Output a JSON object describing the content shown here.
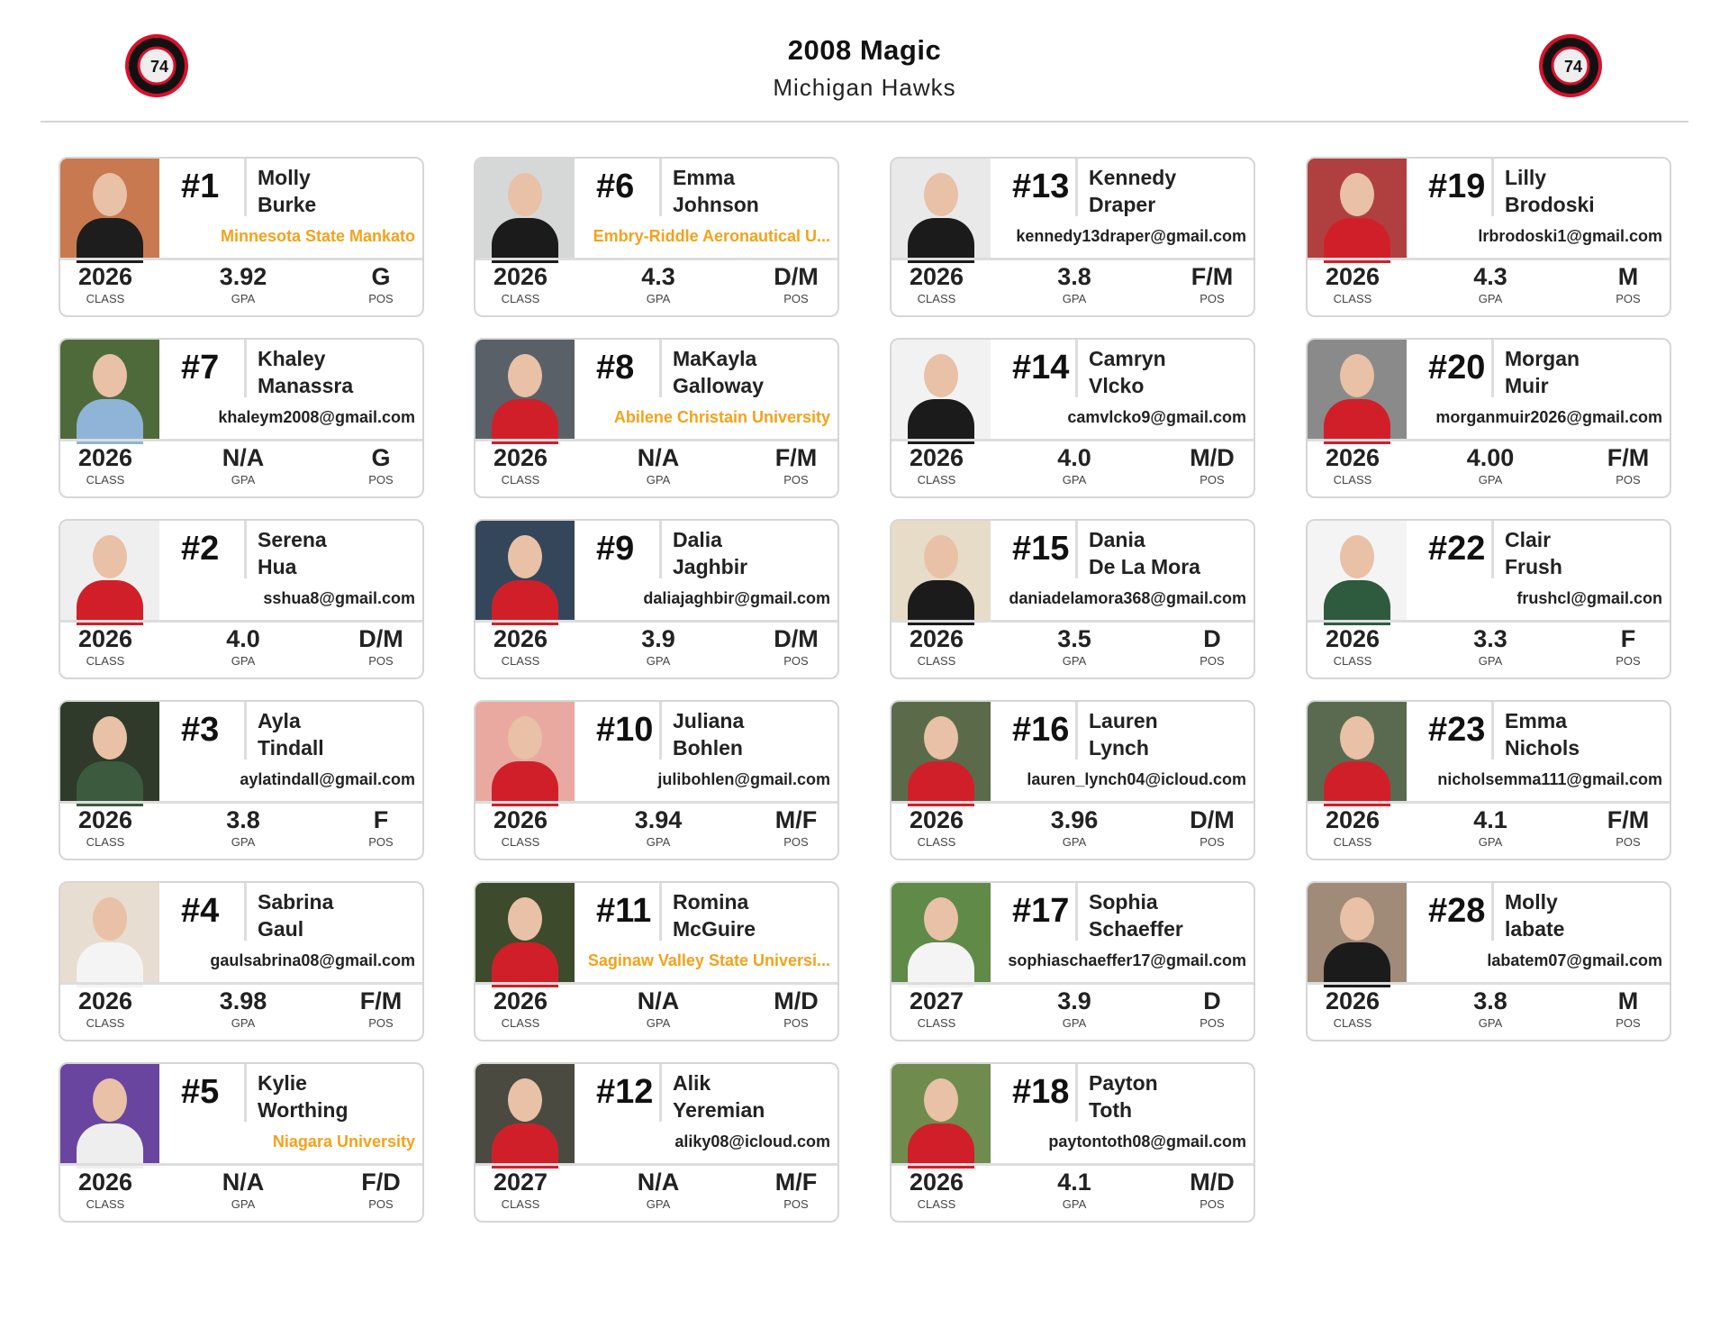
{
  "header": {
    "title": "2008 Magic",
    "subtitle": "Michigan Hawks",
    "logo_text": "MICHIGAN 74 HAWKS"
  },
  "colors": {
    "accent": "#f3a21b",
    "logo_red": "#d8102c"
  },
  "labels": {
    "class": "CLASS",
    "gpa": "GPA",
    "pos": "POS"
  },
  "columns": [
    [
      {
        "number": "#1",
        "first": "Molly",
        "last": "Burke",
        "sub": "Minnesota State Mankato",
        "sub_type": "school",
        "class": "2026",
        "gpa": "3.92",
        "pos": "G",
        "bg": "#c8794f",
        "shirt": "#1d1d1d"
      },
      {
        "number": "#7",
        "first": "Khaley",
        "last": "Manassra",
        "sub": "khaleym2008@gmail.com",
        "sub_type": "email",
        "class": "2026",
        "gpa": "N/A",
        "pos": "G",
        "bg": "#4f6a3a",
        "shirt": "#8fb4d8"
      },
      {
        "number": "#2",
        "first": "Serena",
        "last": "Hua",
        "sub": "sshua8@gmail.com",
        "sub_type": "email",
        "class": "2026",
        "gpa": "4.0",
        "pos": "D/M",
        "bg": "#efefef",
        "shirt": "#d11f2a"
      },
      {
        "number": "#3",
        "first": "Ayla",
        "last": "Tindall",
        "sub": "aylatindall@gmail.com",
        "sub_type": "email",
        "class": "2026",
        "gpa": "3.8",
        "pos": "F",
        "bg": "#2f3a2b",
        "shirt": "#3c5a3d"
      },
      {
        "number": "#4",
        "first": "Sabrina",
        "last": "Gaul",
        "sub": "gaulsabrina08@gmail.com",
        "sub_type": "email",
        "class": "2026",
        "gpa": "3.98",
        "pos": "F/M",
        "bg": "#e7ddd0",
        "shirt": "#f4f4f4"
      },
      {
        "number": "#5",
        "first": "Kylie",
        "last": "Worthing",
        "sub": "Niagara University",
        "sub_type": "school",
        "class": "2026",
        "gpa": "N/A",
        "pos": "F/D",
        "bg": "#6a45a0",
        "shirt": "#eee"
      }
    ],
    [
      {
        "number": "#6",
        "first": "Emma",
        "last": "Johnson",
        "sub": "Embry-Riddle Aeronautical U...",
        "sub_type": "school",
        "class": "2026",
        "gpa": "4.3",
        "pos": "D/M",
        "bg": "#d6d8d8",
        "shirt": "#1b1b1b"
      },
      {
        "number": "#8",
        "first": "MaKayla",
        "last": "Galloway",
        "sub": "Abilene Christain University",
        "sub_type": "school",
        "class": "2026",
        "gpa": "N/A",
        "pos": "F/M",
        "bg": "#5a6068",
        "shirt": "#d11f2a"
      },
      {
        "number": "#9",
        "first": "Dalia",
        "last": "Jaghbir",
        "sub": "daliajaghbir@gmail.com",
        "sub_type": "email",
        "class": "2026",
        "gpa": "3.9",
        "pos": "D/M",
        "bg": "#34465a",
        "shirt": "#d11f2a"
      },
      {
        "number": "#10",
        "first": "Juliana",
        "last": "Bohlen",
        "sub": "julibohlen@gmail.com",
        "sub_type": "email",
        "class": "2026",
        "gpa": "3.94",
        "pos": "M/F",
        "bg": "#e9a9a0",
        "shirt": "#d11f2a"
      },
      {
        "number": "#11",
        "first": "Romina",
        "last": "McGuire",
        "sub": "Saginaw Valley State Universi...",
        "sub_type": "school",
        "class": "2026",
        "gpa": "N/A",
        "pos": "M/D",
        "bg": "#3d4a2c",
        "shirt": "#d11f2a"
      },
      {
        "number": "#12",
        "first": "Alik",
        "last": "Yeremian",
        "sub": "aliky08@icloud.com",
        "sub_type": "email",
        "class": "2027",
        "gpa": "N/A",
        "pos": "M/F",
        "bg": "#4a4a40",
        "shirt": "#d11f2a"
      }
    ],
    [
      {
        "number": "#13",
        "first": "Kennedy",
        "last": "Draper",
        "sub": "kennedy13draper@gmail.com",
        "sub_type": "email",
        "class": "2026",
        "gpa": "3.8",
        "pos": "F/M",
        "bg": "#e9e9e9",
        "shirt": "#1b1b1b"
      },
      {
        "number": "#14",
        "first": "Camryn",
        "last": "Vlcko",
        "sub": "camvlcko9@gmail.com",
        "sub_type": "email",
        "class": "2026",
        "gpa": "4.0",
        "pos": "M/D",
        "bg": "#f2f2f2",
        "shirt": "#1b1b1b"
      },
      {
        "number": "#15",
        "first": "Dania",
        "last": "De La Mora",
        "sub": "daniadelamora368@gmail.com",
        "sub_type": "email",
        "class": "2026",
        "gpa": "3.5",
        "pos": "D",
        "bg": "#e6dcc8",
        "shirt": "#1b1b1b"
      },
      {
        "number": "#16",
        "first": "Lauren",
        "last": "Lynch",
        "sub": "lauren_lynch04@icloud.com",
        "sub_type": "email",
        "class": "2026",
        "gpa": "3.96",
        "pos": "D/M",
        "bg": "#5b6b4a",
        "shirt": "#d11f2a"
      },
      {
        "number": "#17",
        "first": "Sophia",
        "last": "Schaeffer",
        "sub": "sophiaschaeffer17@gmail.com",
        "sub_type": "email",
        "class": "2027",
        "gpa": "3.9",
        "pos": "D",
        "bg": "#5f8a48",
        "shirt": "#f4f4f4"
      },
      {
        "number": "#18",
        "first": "Payton",
        "last": "Toth",
        "sub": "paytontoth08@gmail.com",
        "sub_type": "email",
        "class": "2026",
        "gpa": "4.1",
        "pos": "M/D",
        "bg": "#6f8c4e",
        "shirt": "#d11f2a"
      }
    ],
    [
      {
        "number": "#19",
        "first": "Lilly",
        "last": "Brodoski",
        "sub": "lrbrodoski1@gmail.com",
        "sub_type": "email",
        "class": "2026",
        "gpa": "4.3",
        "pos": "M",
        "bg": "#b04040",
        "shirt": "#d11f2a"
      },
      {
        "number": "#20",
        "first": "Morgan",
        "last": "Muir",
        "sub": "morganmuir2026@gmail.com",
        "sub_type": "email",
        "class": "2026",
        "gpa": "4.00",
        "pos": "F/M",
        "bg": "#8a8a8a",
        "shirt": "#d11f2a"
      },
      {
        "number": "#22",
        "first": "Clair",
        "last": "Frush",
        "sub": "frushcl@gmail.con",
        "sub_type": "email",
        "class": "2026",
        "gpa": "3.3",
        "pos": "F",
        "bg": "#f4f4f4",
        "shirt": "#2e5a3e"
      },
      {
        "number": "#23",
        "first": "Emma",
        "last": "Nichols",
        "sub": "nicholsemma111@gmail.com",
        "sub_type": "email",
        "class": "2026",
        "gpa": "4.1",
        "pos": "F/M",
        "bg": "#5a6a50",
        "shirt": "#d11f2a"
      },
      {
        "number": "#28",
        "first": "Molly",
        "last": "labate",
        "sub": "labatem07@gmail.com",
        "sub_type": "email",
        "class": "2026",
        "gpa": "3.8",
        "pos": "M",
        "bg": "#a08a78",
        "shirt": "#1b1b1b"
      }
    ]
  ]
}
